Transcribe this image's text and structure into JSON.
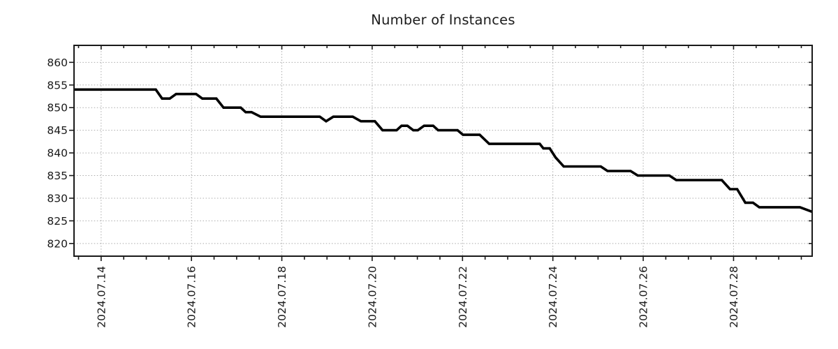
{
  "chart": {
    "title": "Number of Instances"
  },
  "chart_data": {
    "type": "line",
    "title": "Number of Instances",
    "series": [
      {
        "name": "instances",
        "points": [
          [
            13.4,
            854
          ],
          [
            15.21,
            854
          ],
          [
            15.35,
            852
          ],
          [
            15.52,
            852
          ],
          [
            15.66,
            853
          ],
          [
            16.1,
            853
          ],
          [
            16.24,
            852
          ],
          [
            16.55,
            852
          ],
          [
            16.71,
            850
          ],
          [
            17.09,
            850
          ],
          [
            17.2,
            849
          ],
          [
            17.33,
            849
          ],
          [
            17.53,
            848
          ],
          [
            18.84,
            848
          ],
          [
            18.98,
            847
          ],
          [
            19.14,
            848
          ],
          [
            19.57,
            848
          ],
          [
            19.75,
            847
          ],
          [
            20.06,
            847
          ],
          [
            20.23,
            845
          ],
          [
            20.54,
            845
          ],
          [
            20.65,
            846
          ],
          [
            20.78,
            846
          ],
          [
            20.91,
            845
          ],
          [
            21.01,
            845
          ],
          [
            21.15,
            846
          ],
          [
            21.35,
            846
          ],
          [
            21.46,
            845
          ],
          [
            21.89,
            845
          ],
          [
            22.01,
            844
          ],
          [
            22.38,
            844
          ],
          [
            22.59,
            842
          ],
          [
            23.71,
            842
          ],
          [
            23.79,
            841
          ],
          [
            23.93,
            841
          ],
          [
            24.06,
            839
          ],
          [
            24.24,
            837
          ],
          [
            25.06,
            837
          ],
          [
            25.21,
            836
          ],
          [
            25.72,
            836
          ],
          [
            25.88,
            835
          ],
          [
            26.58,
            835
          ],
          [
            26.73,
            834
          ],
          [
            27.74,
            834
          ],
          [
            27.92,
            832
          ],
          [
            28.08,
            832
          ],
          [
            28.26,
            829
          ],
          [
            28.43,
            829
          ],
          [
            28.57,
            828
          ],
          [
            29.47,
            828
          ],
          [
            29.74,
            827
          ]
        ]
      }
    ],
    "x_unit": "day of July 2024 (decimal)",
    "x_ticks_major": [
      {
        "day": 14,
        "label": "2024.07.14"
      },
      {
        "day": 16,
        "label": "2024.07.16"
      },
      {
        "day": 18,
        "label": "2024.07.18"
      },
      {
        "day": 20,
        "label": "2024.07.20"
      },
      {
        "day": 22,
        "label": "2024.07.22"
      },
      {
        "day": 24,
        "label": "2024.07.24"
      },
      {
        "day": 26,
        "label": "2024.07.26"
      },
      {
        "day": 28,
        "label": "2024.07.28"
      }
    ],
    "x_minor_tick_step_days": 0.5,
    "y_ticks": [
      820,
      825,
      830,
      835,
      840,
      845,
      850,
      855,
      860
    ],
    "x_range_days": [
      13.4,
      29.74
    ],
    "y_range": [
      817.2,
      863.75
    ],
    "xlabel": "",
    "ylabel": "",
    "legend": "none",
    "grid": "dotted; vertical at labeled date ticks, horizontal at every 5 units",
    "x_tick_label_rotation_deg": 90,
    "line_color": "#000000",
    "grid_color": "#ababab",
    "axis_color": "#1a1a1a",
    "background": "#ffffff"
  }
}
